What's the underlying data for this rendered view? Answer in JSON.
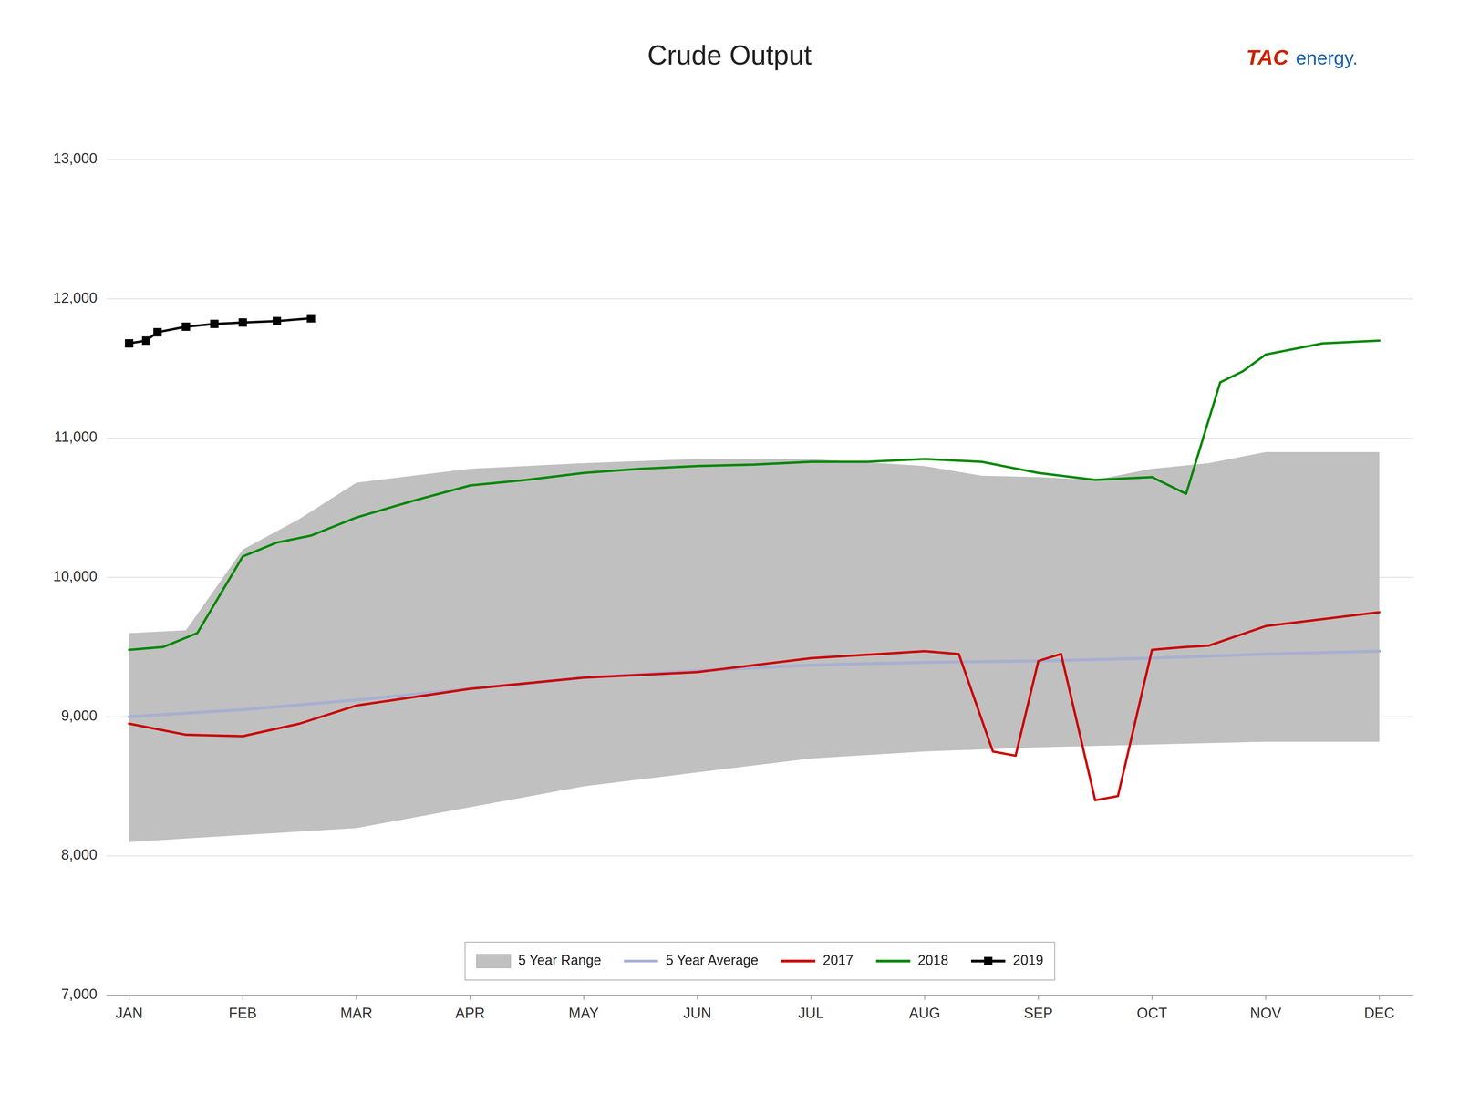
{
  "chart_data": {
    "type": "line",
    "title": "Crude Output",
    "annotations": [
      {
        "text": "TAC",
        "color": "#cc2200"
      },
      {
        "text": "energy.",
        "color": "#1b5faa"
      }
    ],
    "xlim": [
      -0.2,
      11.3
    ],
    "xticks": [
      {
        "value": 0,
        "label": "JAN"
      },
      {
        "value": 1,
        "label": "FEB"
      },
      {
        "value": 2,
        "label": "MAR"
      },
      {
        "value": 3,
        "label": "APR"
      },
      {
        "value": 4,
        "label": "MAY"
      },
      {
        "value": 5,
        "label": "JUN"
      },
      {
        "value": 6,
        "label": "JUL"
      },
      {
        "value": 7,
        "label": "AUG"
      },
      {
        "value": 8,
        "label": "SEP"
      },
      {
        "value": 9,
        "label": "OCT"
      },
      {
        "value": 10,
        "label": "NOV"
      },
      {
        "value": 11,
        "label": "DEC"
      }
    ],
    "ylim": [
      7000,
      13000
    ],
    "yticks": [
      {
        "value": 7000,
        "label": "7,000"
      },
      {
        "value": 8000,
        "label": "8,000"
      },
      {
        "value": 9000,
        "label": "9,000"
      },
      {
        "value": 10000,
        "label": "10,000"
      },
      {
        "value": 11000,
        "label": "11,000"
      },
      {
        "value": 12000,
        "label": "12,000"
      },
      {
        "value": 13000,
        "label": "13,000"
      }
    ],
    "grid": true,
    "legend": "bottom",
    "series": [
      {
        "name": "5 Year Range",
        "type": "area",
        "color": "#c0c0c0",
        "upper": {
          "x": [
            0,
            0.5,
            1,
            1.5,
            2,
            3,
            4,
            5,
            6,
            7,
            7.5,
            8,
            8.5,
            9,
            9.5,
            10,
            11
          ],
          "values": [
            9600,
            9620,
            10200,
            10420,
            10680,
            10780,
            10820,
            10850,
            10850,
            10800,
            10730,
            10720,
            10700,
            10780,
            10820,
            10900,
            10900
          ]
        },
        "lower": {
          "x": [
            0,
            1,
            2,
            3,
            4,
            5,
            6,
            7,
            8,
            9,
            10,
            11
          ],
          "values": [
            8100,
            8150,
            8200,
            8350,
            8500,
            8600,
            8700,
            8750,
            8780,
            8800,
            8820,
            8820
          ]
        }
      },
      {
        "name": "5 Year Average",
        "type": "line",
        "color": "#a8b0d0",
        "x": [
          0,
          1,
          2,
          3,
          4,
          5,
          6,
          7,
          8,
          9,
          10,
          11
        ],
        "values": [
          9000,
          9050,
          9120,
          9200,
          9280,
          9330,
          9370,
          9390,
          9400,
          9420,
          9450,
          9470
        ]
      },
      {
        "name": "2017",
        "type": "line",
        "color": "#cc0000",
        "x": [
          0,
          0.5,
          1,
          1.5,
          2,
          3,
          4,
          5,
          6,
          7,
          7.3,
          7.6,
          7.8,
          8,
          8.2,
          8.5,
          8.7,
          9,
          9.3,
          9.5,
          10,
          11
        ],
        "values": [
          8950,
          8870,
          8860,
          8950,
          9080,
          9200,
          9280,
          9320,
          9420,
          9470,
          9450,
          8750,
          8720,
          9400,
          9450,
          8400,
          8430,
          9480,
          9500,
          9510,
          9650,
          9750
        ]
      },
      {
        "name": "2018",
        "type": "line",
        "color": "#008800",
        "x": [
          0,
          0.3,
          0.6,
          1,
          1.3,
          1.6,
          2,
          2.5,
          3,
          3.5,
          4,
          4.5,
          5,
          5.5,
          6,
          6.5,
          7,
          7.5,
          8,
          8.5,
          9,
          9.1,
          9.3,
          9.6,
          9.8,
          10,
          10.5,
          11
        ],
        "values": [
          9480,
          9500,
          9600,
          10150,
          10250,
          10300,
          10430,
          10550,
          10660,
          10700,
          10750,
          10780,
          10800,
          10810,
          10830,
          10830,
          10850,
          10830,
          10750,
          10700,
          10720,
          10680,
          10600,
          11400,
          11480,
          11600,
          11680,
          11700
        ]
      },
      {
        "name": "2019",
        "type": "line",
        "color": "#000000",
        "marker": "square",
        "x": [
          0,
          0.15,
          0.25,
          0.5,
          0.75,
          1.0,
          1.3,
          1.6
        ],
        "values": [
          11680,
          11700,
          11760,
          11800,
          11820,
          11830,
          11840,
          11860
        ]
      }
    ]
  }
}
